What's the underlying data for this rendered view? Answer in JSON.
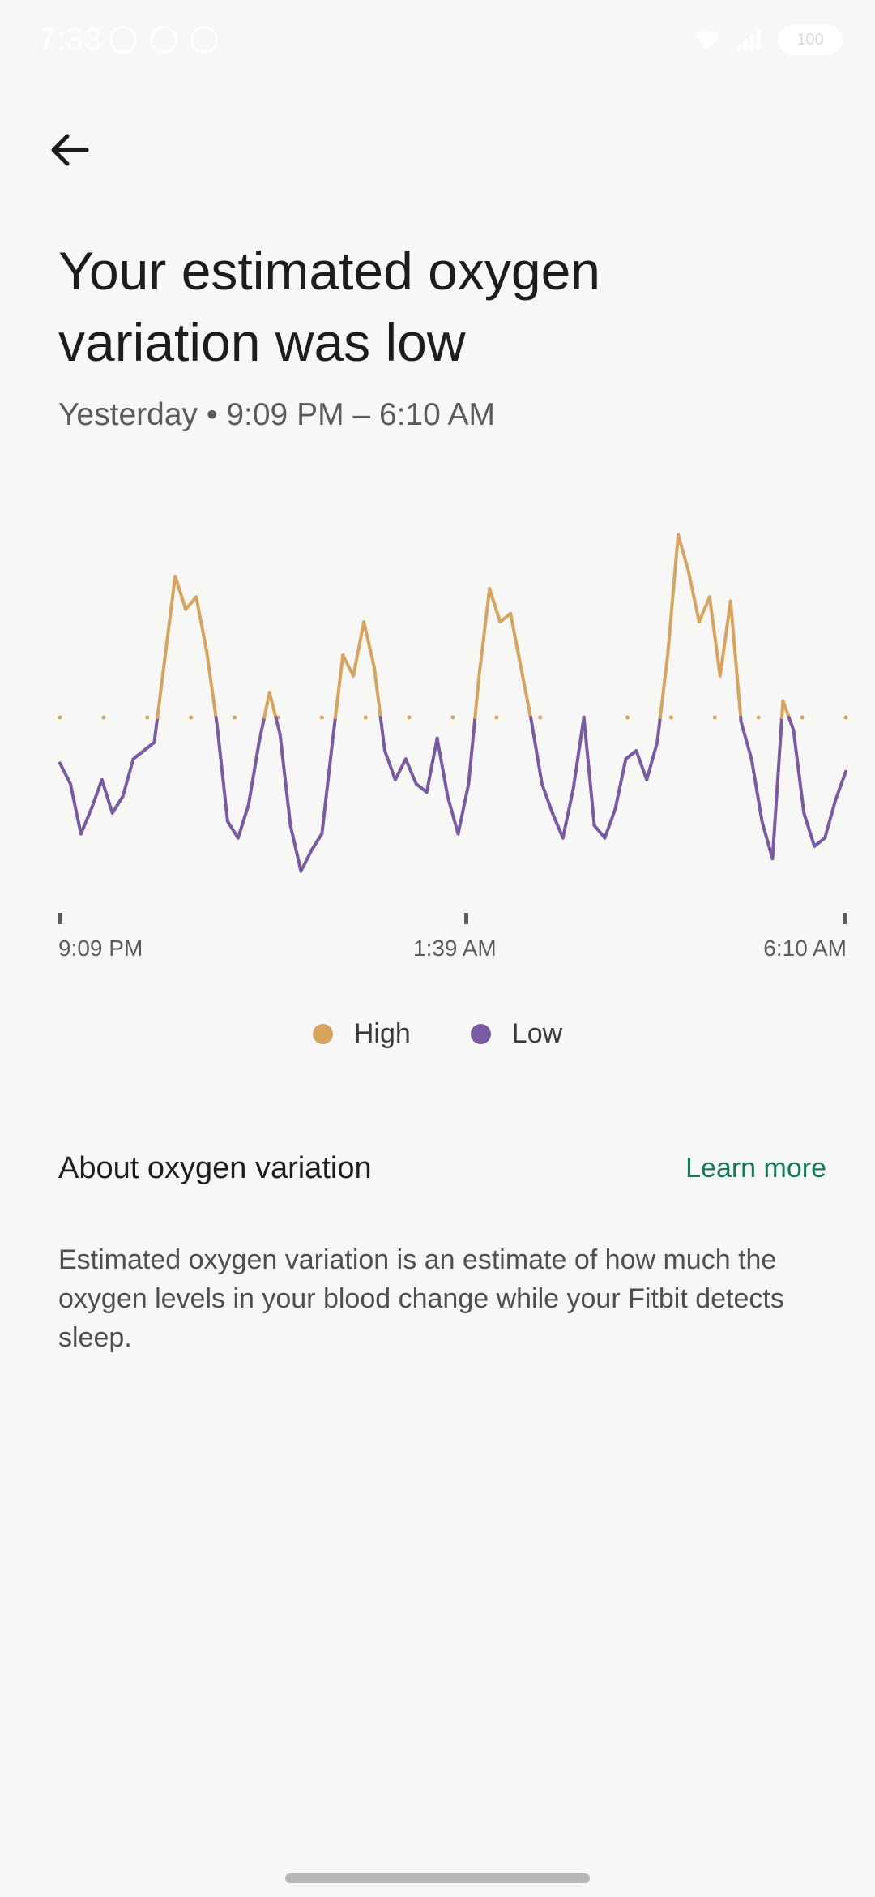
{
  "status_bar": {
    "time": "7:33",
    "battery": "100"
  },
  "header": {
    "title": "Your estimated oxygen variation was low",
    "subtitle": "Yesterday • 9:09 PM – 6:10 AM"
  },
  "chart_data": {
    "type": "line",
    "x_ticks": [
      "9:09 PM",
      "1:39 AM",
      "6:10 AM"
    ],
    "threshold": 0,
    "y_range": [
      -4,
      4
    ],
    "colors": {
      "high": "#d6a45c",
      "low": "#7a5aa5",
      "threshold": "#d6a45c",
      "axis": "#5b5d5c"
    },
    "series": [
      {
        "name": "Oxygen variation",
        "values": [
          -1.1,
          -1.6,
          -2.8,
          -2.2,
          -1.5,
          -2.3,
          -1.9,
          -1.0,
          -0.8,
          -0.6,
          1.4,
          3.4,
          2.6,
          2.9,
          1.6,
          -0.2,
          -2.5,
          -2.9,
          -2.1,
          -0.6,
          0.6,
          -0.4,
          -2.6,
          -3.7,
          -3.2,
          -2.8,
          -0.6,
          1.5,
          1.0,
          2.3,
          1.2,
          -0.8,
          -1.5,
          -1.0,
          -1.6,
          -1.8,
          -0.5,
          -1.9,
          -2.8,
          -1.6,
          1.0,
          3.1,
          2.3,
          2.5,
          1.2,
          -0.1,
          -1.6,
          -2.3,
          -2.9,
          -1.7,
          0.0,
          -2.6,
          -2.9,
          -2.2,
          -1.0,
          -0.8,
          -1.5,
          -0.6,
          1.5,
          4.4,
          3.5,
          2.3,
          2.9,
          1.0,
          2.8,
          -0.1,
          -1.0,
          -2.5,
          -3.4,
          0.4,
          -0.3,
          -2.3,
          -3.1,
          -2.9,
          -2.0,
          -1.3
        ]
      }
    ]
  },
  "legend": {
    "items": [
      {
        "label": "High",
        "color": "#d6a45c"
      },
      {
        "label": "Low",
        "color": "#7a5aa5"
      }
    ]
  },
  "about": {
    "header": "About oxygen variation",
    "learn_more": "Learn more",
    "description": "Estimated oxygen variation is an estimate of how much the oxygen levels in your blood change while your Fitbit detects sleep."
  }
}
